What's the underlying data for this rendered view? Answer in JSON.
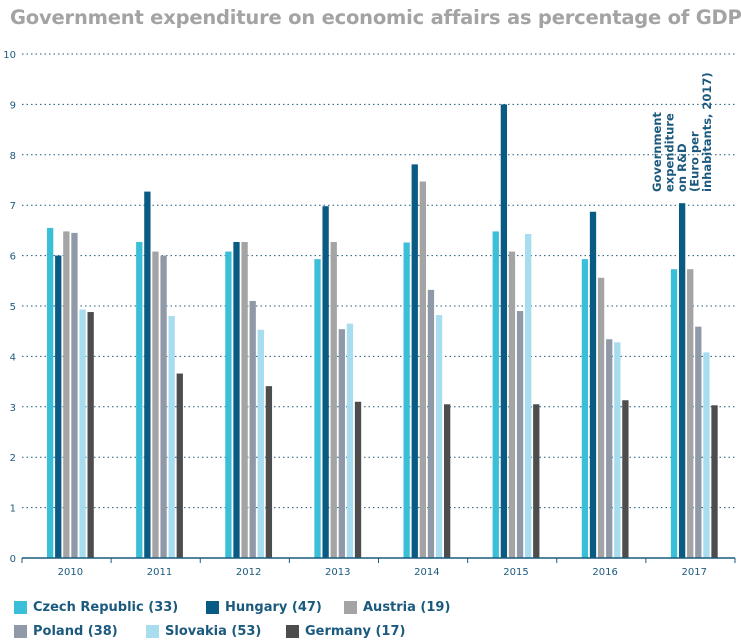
{
  "title": "Government expenditure on economic affairs as percentage of GDP",
  "annotation": [
    "Government",
    "expenditure",
    "on R&D",
    "(Euro per",
    "inhabitants, 2017)"
  ],
  "colors": {
    "Czech Republic (33)": "#3bbfd8",
    "Hungary (47)": "#0a5b84",
    "Austria (19)": "#a4a4a4",
    "Poland (38)": "#8f99a8",
    "Slovakia (53)": "#a8dcef",
    "Germany (17)": "#4d4d4d",
    "axis_text": "#1b5a7e",
    "gridline": "#1b5a7e"
  },
  "chart_data": {
    "type": "bar",
    "title": "Government expenditure on economic affairs as percentage of GDP",
    "categories": [
      "2010",
      "2011",
      "2012",
      "2013",
      "2014",
      "2015",
      "2016",
      "2017"
    ],
    "ylim": [
      0,
      10
    ],
    "yticks": [
      "0",
      "1",
      "2",
      "3",
      "4",
      "5",
      "6",
      "7",
      "8",
      "9",
      "10"
    ],
    "grid": "horizontal dotted",
    "legend": "bottom",
    "series": [
      {
        "name": "Czech Republic (33)",
        "values": [
          6.55,
          6.27,
          6.08,
          5.93,
          6.26,
          6.48,
          5.93,
          5.73
        ]
      },
      {
        "name": "Hungary (47)",
        "values": [
          6.0,
          7.27,
          6.27,
          6.98,
          7.81,
          9.0,
          6.87,
          7.04
        ]
      },
      {
        "name": "Austria (19)",
        "values": [
          6.48,
          6.08,
          6.27,
          6.27,
          7.47,
          6.08,
          5.56,
          5.73
        ]
      },
      {
        "name": "Poland (38)",
        "values": [
          6.45,
          6.0,
          5.1,
          4.54,
          5.32,
          4.9,
          4.34,
          4.59
        ]
      },
      {
        "name": "Slovakia (53)",
        "values": [
          4.93,
          4.8,
          4.53,
          4.65,
          4.82,
          6.43,
          4.28,
          4.08
        ]
      },
      {
        "name": "Germany (17)",
        "values": [
          4.88,
          3.66,
          3.41,
          3.1,
          3.05,
          3.05,
          3.13,
          3.03
        ]
      }
    ]
  }
}
